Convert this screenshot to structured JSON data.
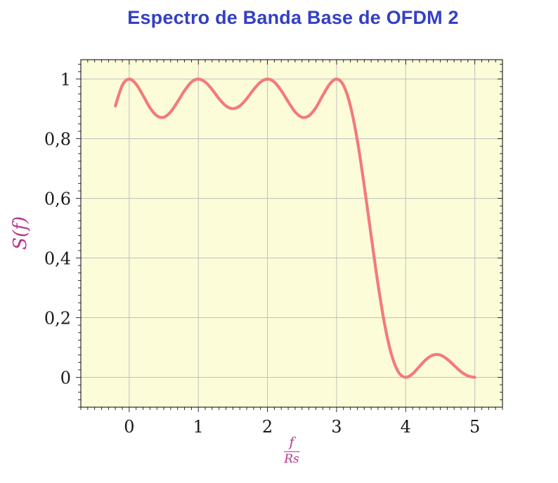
{
  "title": "Espectro de Banda Base de OFDM 2",
  "colors": {
    "title": "#3340c4",
    "axis_label": "#b5368d",
    "curve": "#f47a7a",
    "plot_bg": "#fcfcd9",
    "grid": "#bfbfbf",
    "frame": "#000000",
    "tick_text": "#1a1a1a"
  },
  "chart_data": {
    "type": "line",
    "title": "Espectro de Banda Base de OFDM 2",
    "xlabel": "f/Rs",
    "xlabel_parts": {
      "top": "f",
      "bottom": "Rs"
    },
    "ylabel": "S(f)",
    "xlim": [
      -0.7,
      5.4
    ],
    "ylim": [
      -0.1,
      1.065
    ],
    "grid": true,
    "x_ticks": [
      0,
      1,
      2,
      3,
      4,
      5
    ],
    "x_tick_labels": [
      "0",
      "1",
      "2",
      "3",
      "4",
      "5"
    ],
    "y_ticks": [
      0,
      0.2,
      0.4,
      0.6,
      0.8,
      1
    ],
    "y_tick_labels": [
      "0",
      "0,2",
      "0,4",
      "0,6",
      "0,8",
      "1"
    ],
    "x_minor_step": 0.1,
    "y_minor_step": 0.025,
    "series": [
      {
        "name": "S(f)",
        "x": [
          -0.2,
          -0.1,
          0,
          0.1,
          0.2,
          0.3,
          0.4,
          0.5,
          0.6,
          0.7,
          0.8,
          0.9,
          1,
          1.1,
          1.2,
          1.3,
          1.4,
          1.5,
          1.6,
          1.7,
          1.8,
          1.9,
          2,
          2.1,
          2.2,
          2.3,
          2.4,
          2.5,
          2.6,
          2.7,
          2.8,
          2.9,
          3,
          3.1,
          3.2,
          3.3,
          3.4,
          3.5,
          3.6,
          3.7,
          3.8,
          3.9,
          4,
          4.1,
          4.2,
          4.3,
          4.4,
          4.5,
          4.6,
          4.7,
          4.8,
          4.9,
          5
        ],
        "y": [
          0.91,
          0.979,
          1.0,
          0.983,
          0.945,
          0.904,
          0.877,
          0.872,
          0.89,
          0.924,
          0.961,
          0.99,
          1.0,
          0.99,
          0.965,
          0.934,
          0.91,
          0.901,
          0.91,
          0.934,
          0.965,
          0.99,
          1.0,
          0.99,
          0.961,
          0.924,
          0.89,
          0.872,
          0.877,
          0.904,
          0.945,
          0.983,
          1.0,
          0.979,
          0.91,
          0.795,
          0.643,
          0.475,
          0.311,
          0.172,
          0.072,
          0.016,
          0.0,
          0.012,
          0.037,
          0.061,
          0.075,
          0.075,
          0.061,
          0.04,
          0.019,
          0.005,
          0.0
        ]
      }
    ]
  }
}
